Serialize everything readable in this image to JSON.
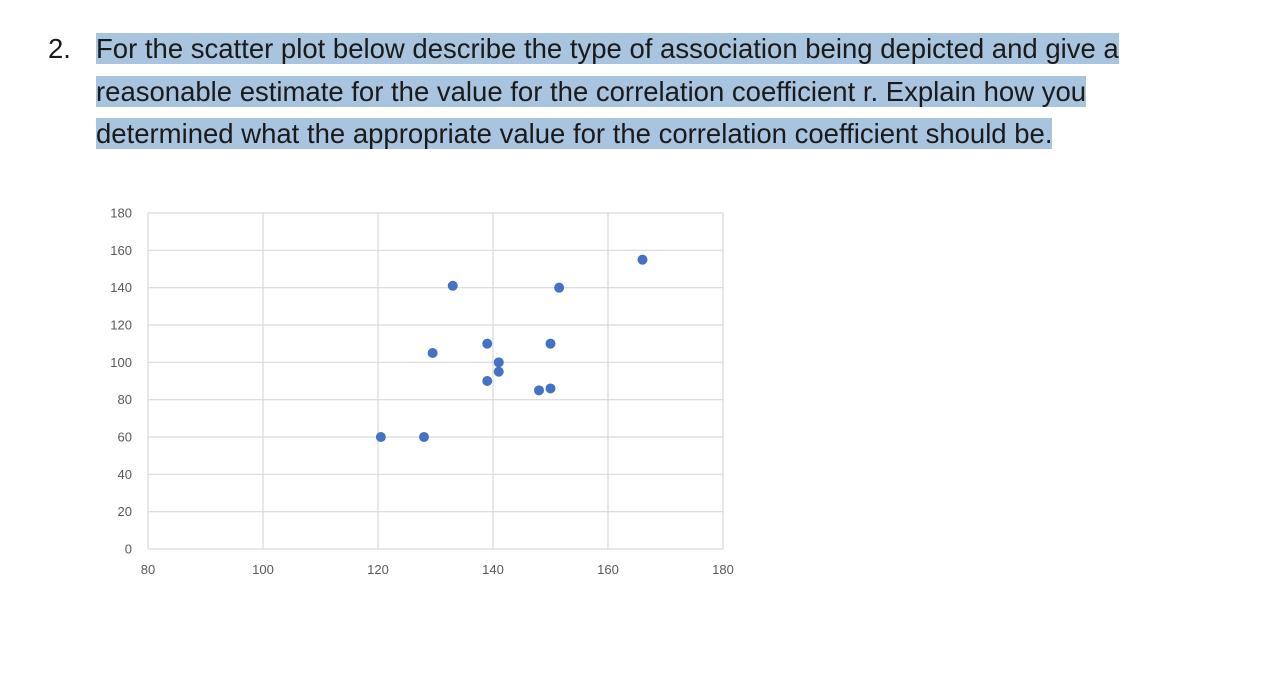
{
  "question": {
    "number": "2.",
    "lines": [
      "For the scatter plot below describe the type of association being depicted and give a",
      "reasonable estimate for the value for the correlation coefficient r. Explain how you",
      "determined what the appropriate value for the correlation coefficient should be."
    ]
  },
  "colors": {
    "highlight": "#a9c4de",
    "point": "#4472c4",
    "grid": "#d9d9d9"
  },
  "chart_data": {
    "type": "scatter",
    "title": "",
    "xlabel": "",
    "ylabel": "",
    "xlim": [
      80,
      180
    ],
    "ylim": [
      0,
      180
    ],
    "x_ticks": [
      80,
      100,
      120,
      140,
      160,
      180
    ],
    "y_ticks": [
      0,
      20,
      40,
      60,
      80,
      100,
      120,
      140,
      160,
      180
    ],
    "grid": true,
    "series": [
      {
        "points": [
          {
            "x": 120.5,
            "y": 60
          },
          {
            "x": 128,
            "y": 60
          },
          {
            "x": 129.5,
            "y": 105
          },
          {
            "x": 133,
            "y": 141
          },
          {
            "x": 139,
            "y": 110
          },
          {
            "x": 139,
            "y": 90
          },
          {
            "x": 141,
            "y": 100
          },
          {
            "x": 141,
            "y": 95
          },
          {
            "x": 148,
            "y": 85
          },
          {
            "x": 150,
            "y": 86
          },
          {
            "x": 150,
            "y": 110
          },
          {
            "x": 151.5,
            "y": 140
          },
          {
            "x": 166,
            "y": 155
          }
        ]
      }
    ]
  }
}
